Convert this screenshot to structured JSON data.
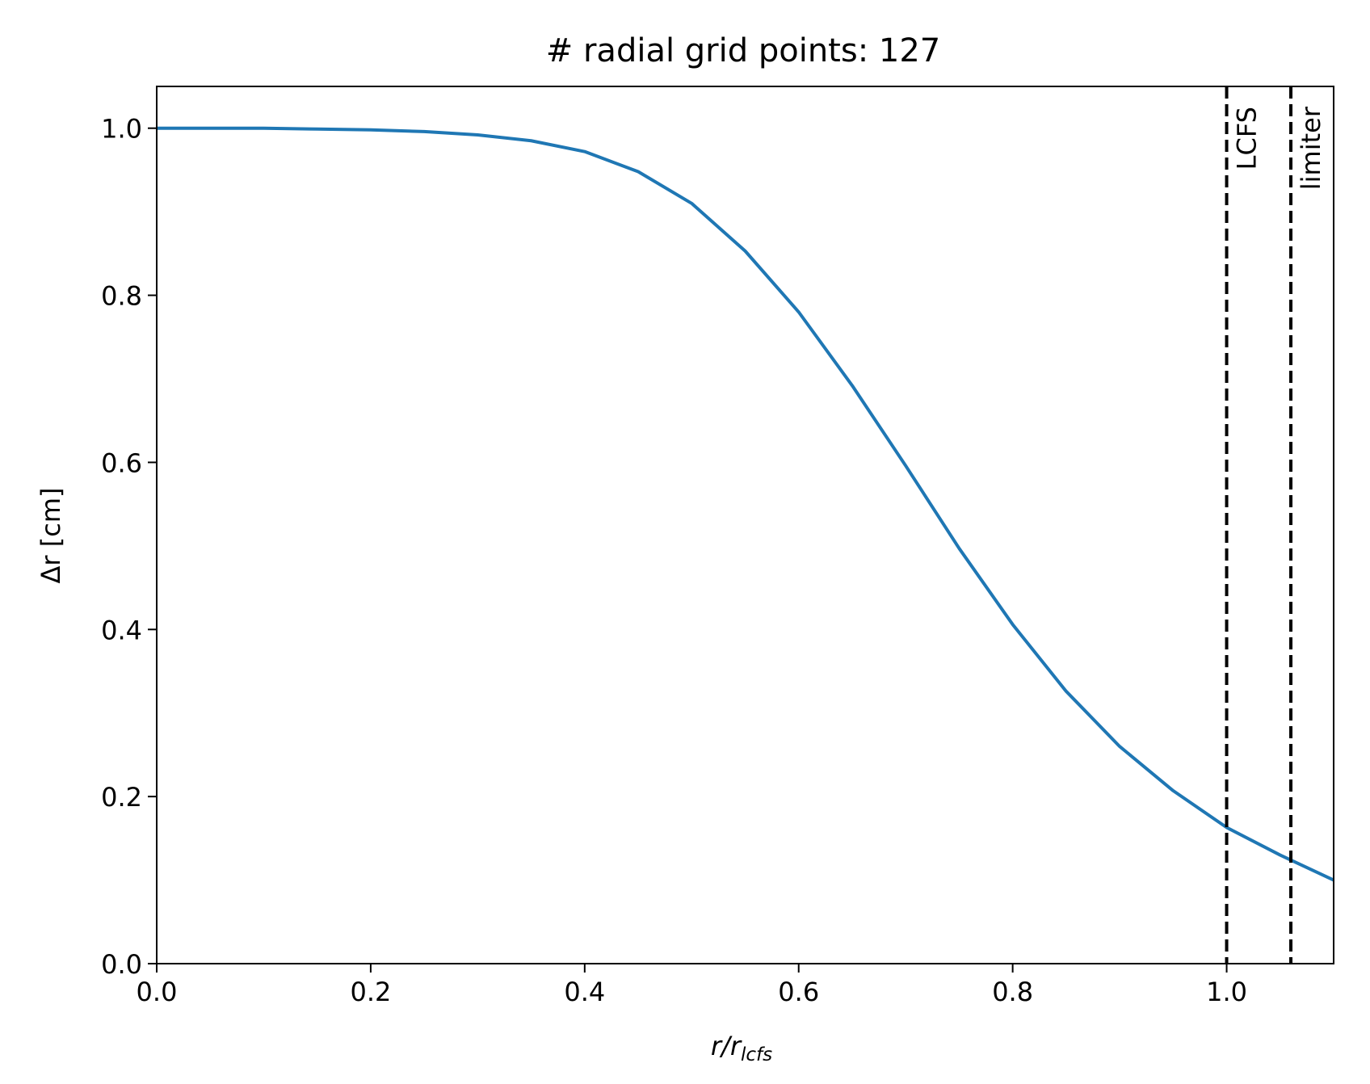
{
  "chart_data": {
    "type": "line",
    "title": "# radial grid points: 127",
    "xlabel": {
      "main": "r/r",
      "sub": "lcfs"
    },
    "ylabel": "Δr [cm]",
    "xlim": [
      0.0,
      1.1
    ],
    "ylim": [
      0.0,
      1.05
    ],
    "xticks": [
      {
        "value": 0.0,
        "label": "0.0"
      },
      {
        "value": 0.2,
        "label": "0.2"
      },
      {
        "value": 0.4,
        "label": "0.4"
      },
      {
        "value": 0.6,
        "label": "0.6"
      },
      {
        "value": 0.8,
        "label": "0.8"
      },
      {
        "value": 1.0,
        "label": "1.0"
      }
    ],
    "yticks": [
      {
        "value": 0.0,
        "label": "0.0"
      },
      {
        "value": 0.2,
        "label": "0.2"
      },
      {
        "value": 0.4,
        "label": "0.4"
      },
      {
        "value": 0.6,
        "label": "0.6"
      },
      {
        "value": 0.8,
        "label": "0.8"
      },
      {
        "value": 1.0,
        "label": "1.0"
      }
    ],
    "grid": false,
    "legend": "none",
    "series": [
      {
        "color": "#1f77b4",
        "x": [
          0.0,
          0.05,
          0.1,
          0.15,
          0.2,
          0.25,
          0.3,
          0.35,
          0.4,
          0.45,
          0.5,
          0.55,
          0.6,
          0.65,
          0.7,
          0.75,
          0.8,
          0.85,
          0.9,
          0.95,
          1.0,
          1.05,
          1.1
        ],
        "y": [
          1.0,
          1.0,
          1.0,
          0.999,
          0.998,
          0.996,
          0.992,
          0.985,
          0.972,
          0.948,
          0.91,
          0.853,
          0.78,
          0.692,
          0.596,
          0.497,
          0.406,
          0.326,
          0.26,
          0.207,
          0.163,
          0.13,
          0.1
        ]
      }
    ],
    "vlines": [
      {
        "x": 1.0,
        "label": "LCFS",
        "style": "dashed",
        "color": "#000000"
      },
      {
        "x": 1.06,
        "label": "limiter",
        "style": "dashed",
        "color": "#000000"
      }
    ]
  }
}
